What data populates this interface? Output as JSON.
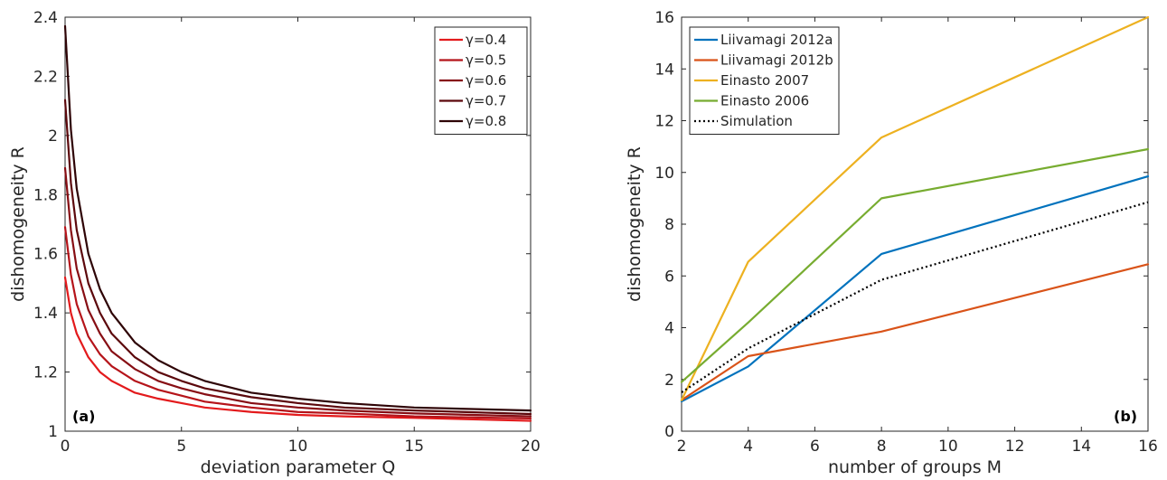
{
  "chart_data": [
    {
      "type": "line",
      "panel_label": "(a)",
      "xlabel": "deviation parameter Q",
      "ylabel": "dishomogeneity R",
      "xlim": [
        0,
        20
      ],
      "ylim": [
        1,
        2.4
      ],
      "xticks": [
        0,
        5,
        10,
        15,
        20
      ],
      "xtick_labels": [
        "0",
        "5",
        "10",
        "15",
        "20"
      ],
      "yticks": [
        1,
        1.2,
        1.4,
        1.6,
        1.8,
        2,
        2.2,
        2.4
      ],
      "ytick_labels": [
        "1",
        "1.2",
        "1.4",
        "1.6",
        "1.8",
        "2",
        "2.2",
        "2.4"
      ],
      "grid": false,
      "legend_position": "top-right",
      "series": [
        {
          "name": "γ=0.4",
          "color": "#e31a1c",
          "x": [
            0,
            0.25,
            0.5,
            1,
            1.5,
            2,
            3,
            4,
            5,
            6,
            8,
            10,
            12,
            15,
            20
          ],
          "y": [
            1.52,
            1.4,
            1.33,
            1.25,
            1.2,
            1.17,
            1.13,
            1.11,
            1.095,
            1.08,
            1.065,
            1.055,
            1.05,
            1.045,
            1.035
          ]
        },
        {
          "name": "γ=0.5",
          "color": "#b5141a",
          "x": [
            0,
            0.25,
            0.5,
            1,
            1.5,
            2,
            3,
            4,
            5,
            6,
            8,
            10,
            12,
            15,
            20
          ],
          "y": [
            1.69,
            1.53,
            1.43,
            1.32,
            1.26,
            1.22,
            1.17,
            1.14,
            1.12,
            1.1,
            1.08,
            1.065,
            1.06,
            1.05,
            1.043
          ]
        },
        {
          "name": "γ=0.6",
          "color": "#870e14",
          "x": [
            0,
            0.25,
            0.5,
            1,
            1.5,
            2,
            3,
            4,
            5,
            6,
            8,
            10,
            12,
            15,
            20
          ],
          "y": [
            1.89,
            1.68,
            1.55,
            1.41,
            1.33,
            1.27,
            1.21,
            1.17,
            1.145,
            1.125,
            1.095,
            1.08,
            1.07,
            1.06,
            1.05
          ]
        },
        {
          "name": "γ=0.7",
          "color": "#5c080c",
          "x": [
            0,
            0.25,
            0.5,
            1,
            1.5,
            2,
            3,
            4,
            5,
            6,
            8,
            10,
            12,
            15,
            20
          ],
          "y": [
            2.12,
            1.84,
            1.68,
            1.5,
            1.4,
            1.33,
            1.25,
            1.2,
            1.17,
            1.145,
            1.115,
            1.095,
            1.08,
            1.07,
            1.058
          ]
        },
        {
          "name": "γ=0.8",
          "color": "#2e0406",
          "x": [
            0,
            0.25,
            0.5,
            1,
            1.5,
            2,
            3,
            4,
            5,
            6,
            8,
            10,
            12,
            15,
            20
          ],
          "y": [
            2.37,
            2.02,
            1.82,
            1.6,
            1.48,
            1.4,
            1.3,
            1.24,
            1.2,
            1.17,
            1.13,
            1.11,
            1.095,
            1.08,
            1.07
          ]
        }
      ]
    },
    {
      "type": "line",
      "panel_label": "(b)",
      "xlabel": "number of groups M",
      "ylabel": "dishomogeneity R",
      "xlim": [
        2,
        16
      ],
      "ylim": [
        0,
        16
      ],
      "xticks": [
        2,
        4,
        6,
        8,
        10,
        12,
        14,
        16
      ],
      "xtick_labels": [
        "2",
        "4",
        "6",
        "8",
        "10",
        "12",
        "14",
        "16"
      ],
      "yticks": [
        0,
        2,
        4,
        6,
        8,
        10,
        12,
        14,
        16
      ],
      "ytick_labels": [
        "0",
        "2",
        "4",
        "6",
        "8",
        "10",
        "12",
        "14",
        "16"
      ],
      "grid": false,
      "legend_position": "top-left",
      "series": [
        {
          "name": "Liivamagi 2012a",
          "color": "#0072bd",
          "style": "solid",
          "x": [
            2,
            4,
            8,
            16
          ],
          "y": [
            1.15,
            2.5,
            6.85,
            9.85
          ]
        },
        {
          "name": "Liivamagi 2012b",
          "color": "#d95319",
          "style": "solid",
          "x": [
            2,
            4,
            8,
            16
          ],
          "y": [
            1.2,
            2.9,
            3.85,
            6.45
          ]
        },
        {
          "name": "Einasto 2007",
          "color": "#edb120",
          "style": "solid",
          "x": [
            2,
            4,
            8,
            16
          ],
          "y": [
            1.2,
            6.55,
            11.35,
            16.0
          ]
        },
        {
          "name": "Einasto 2006",
          "color": "#77ac30",
          "style": "solid",
          "x": [
            2,
            4,
            8,
            16
          ],
          "y": [
            1.9,
            4.2,
            9.0,
            10.9
          ]
        },
        {
          "name": "Simulation",
          "color": "#000000",
          "style": "dotted",
          "x": [
            2,
            4,
            8,
            16
          ],
          "y": [
            1.5,
            3.2,
            5.85,
            8.85
          ]
        }
      ]
    }
  ]
}
